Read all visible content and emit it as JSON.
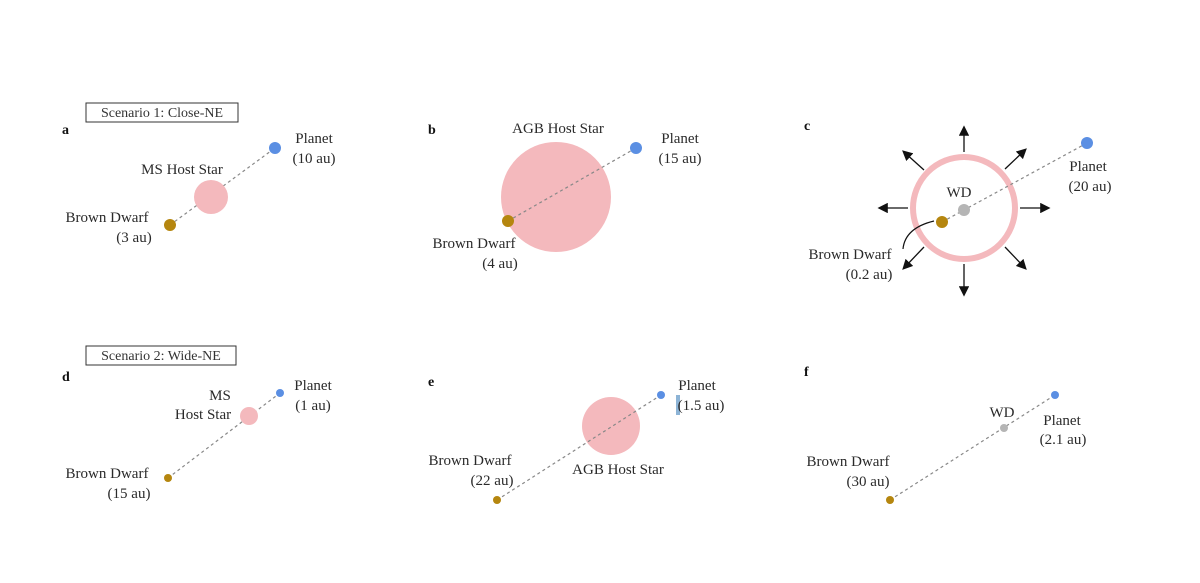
{
  "scenarios": {
    "s1": "Scenario 1: Close-NE",
    "s2": "Scenario 2: Wide-NE"
  },
  "colors": {
    "host_star": "#f4b9bd",
    "planet": "#5b8fe3",
    "brown_dwarf": "#b5860f",
    "white_dwarf": "#b5b5b5",
    "link": "#888888"
  },
  "panels": {
    "a": {
      "tag": "a",
      "star_label": "MS Host Star",
      "planet_name": "Planet",
      "planet_dist": "(10 au)",
      "bd_name": "Brown Dwarf",
      "bd_dist": "(3 au)"
    },
    "b": {
      "tag": "b",
      "star_label": "AGB Host Star",
      "planet_name": "Planet",
      "planet_dist": "(15 au)",
      "bd_name": "Brown Dwarf",
      "bd_dist": "(4 au)"
    },
    "c": {
      "tag": "c",
      "star_label": "WD",
      "planet_name": "Planet",
      "planet_dist": "(20 au)",
      "bd_name": "Brown Dwarf",
      "bd_dist": "(0.2 au)"
    },
    "d": {
      "tag": "d",
      "star_label_1": "MS",
      "star_label_2": "Host Star",
      "planet_name": "Planet",
      "planet_dist": "(1 au)",
      "bd_name": "Brown Dwarf",
      "bd_dist": "(15 au)"
    },
    "e": {
      "tag": "e",
      "star_label": "AGB Host Star",
      "planet_name": "Planet",
      "planet_dist": "(1.5 au)",
      "bd_name": "Brown Dwarf",
      "bd_dist": "(22 au)"
    },
    "f": {
      "tag": "f",
      "star_label": "WD",
      "planet_name": "Planet",
      "planet_dist": "(2.1 au)",
      "bd_name": "Brown Dwarf",
      "bd_dist": "(30 au)"
    }
  }
}
